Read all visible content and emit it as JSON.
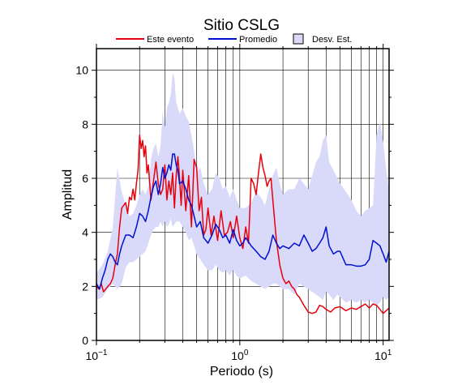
{
  "chart_data": {
    "type": "line",
    "title": "Sitio CSLG",
    "xlabel": "Periodo (s)",
    "ylabel": "Amplitud",
    "xscale": "log",
    "xlim": [
      0.1,
      11
    ],
    "ylim": [
      0,
      10.8
    ],
    "x_ticks": [
      {
        "value": 0.1,
        "base": "10",
        "exp": "−1"
      },
      {
        "value": 1,
        "base": "10",
        "exp": "0"
      },
      {
        "value": 10,
        "base": "10",
        "exp": "1"
      }
    ],
    "y_ticks": [
      0,
      2,
      4,
      6,
      8,
      10
    ],
    "grid": true,
    "legend_position": "top",
    "legend": {
      "event": "Este evento",
      "mean": "Promedio",
      "std": "Desv. Est."
    },
    "colors": {
      "event": "#e8000b",
      "mean": "#0010d0",
      "std_fill": "#d9d9fa",
      "grid": "#000000"
    },
    "series": [
      {
        "name": "Este evento",
        "x": [
          0.1,
          0.104,
          0.108,
          0.112,
          0.116,
          0.12,
          0.125,
          0.13,
          0.135,
          0.14,
          0.145,
          0.15,
          0.155,
          0.16,
          0.165,
          0.17,
          0.175,
          0.18,
          0.185,
          0.19,
          0.195,
          0.2,
          0.205,
          0.21,
          0.215,
          0.22,
          0.225,
          0.23,
          0.24,
          0.25,
          0.26,
          0.27,
          0.28,
          0.29,
          0.3,
          0.31,
          0.32,
          0.33,
          0.34,
          0.35,
          0.36,
          0.37,
          0.38,
          0.39,
          0.4,
          0.42,
          0.44,
          0.46,
          0.48,
          0.5,
          0.52,
          0.54,
          0.56,
          0.58,
          0.6,
          0.63,
          0.66,
          0.7,
          0.74,
          0.78,
          0.82,
          0.86,
          0.9,
          0.95,
          1.0,
          1.05,
          1.1,
          1.15,
          1.2,
          1.25,
          1.3,
          1.35,
          1.4,
          1.45,
          1.5,
          1.55,
          1.6,
          1.65,
          1.7,
          1.8,
          1.9,
          2.0,
          2.1,
          2.2,
          2.3,
          2.4,
          2.5,
          2.6,
          2.8,
          3.0,
          3.2,
          3.4,
          3.6,
          3.8,
          4.0,
          4.3,
          4.6,
          5.0,
          5.5,
          6.0,
          6.5,
          7.0,
          7.5,
          8.0,
          8.5,
          9.0,
          9.5,
          10.0,
          10.5,
          11.0
        ],
        "y": [
          2.0,
          1.9,
          2.1,
          1.8,
          1.9,
          2.0,
          2.1,
          2.3,
          2.8,
          3.2,
          4.2,
          4.9,
          5.0,
          5.1,
          4.7,
          5.3,
          5.2,
          5.6,
          5.2,
          5.8,
          6.3,
          7.6,
          7.1,
          7.4,
          6.8,
          7.2,
          6.2,
          6.5,
          5.2,
          5.9,
          6.6,
          5.8,
          5.4,
          5.6,
          6.5,
          5.2,
          5.9,
          5.4,
          6.2,
          4.9,
          6.1,
          6.8,
          6.0,
          5.0,
          6.3,
          4.8,
          6.1,
          4.2,
          6.7,
          6.4,
          4.8,
          5.3,
          3.9,
          4.1,
          4.9,
          3.9,
          4.6,
          3.7,
          4.8,
          3.9,
          4.0,
          4.4,
          3.8,
          4.6,
          3.8,
          3.4,
          4.2,
          3.6,
          6.0,
          5.8,
          5.4,
          6.2,
          6.9,
          6.4,
          6.1,
          5.7,
          5.9,
          6.0,
          5.2,
          3.7,
          2.8,
          2.3,
          2.1,
          2.2,
          2.0,
          1.9,
          1.7,
          1.6,
          1.3,
          1.05,
          1.0,
          1.05,
          1.3,
          1.25,
          1.15,
          1.05,
          1.2,
          1.25,
          1.1,
          1.2,
          1.15,
          1.25,
          1.35,
          1.2,
          1.35,
          1.3,
          1.15,
          1.0,
          1.1,
          1.2
        ]
      },
      {
        "name": "Promedio",
        "x": [
          0.1,
          0.105,
          0.11,
          0.115,
          0.12,
          0.125,
          0.13,
          0.135,
          0.14,
          0.145,
          0.15,
          0.16,
          0.17,
          0.18,
          0.19,
          0.2,
          0.21,
          0.22,
          0.23,
          0.24,
          0.25,
          0.26,
          0.27,
          0.28,
          0.29,
          0.3,
          0.31,
          0.32,
          0.33,
          0.34,
          0.35,
          0.36,
          0.37,
          0.38,
          0.4,
          0.42,
          0.44,
          0.46,
          0.48,
          0.5,
          0.53,
          0.56,
          0.6,
          0.64,
          0.68,
          0.72,
          0.76,
          0.8,
          0.85,
          0.9,
          0.95,
          1.0,
          1.05,
          1.1,
          1.2,
          1.3,
          1.4,
          1.5,
          1.6,
          1.7,
          1.8,
          1.9,
          2.0,
          2.2,
          2.4,
          2.6,
          2.8,
          3.0,
          3.2,
          3.4,
          3.6,
          3.8,
          4.0,
          4.2,
          4.5,
          4.8,
          5.0,
          5.5,
          6.0,
          6.5,
          7.0,
          7.5,
          8.0,
          8.5,
          9.0,
          9.5,
          10.0,
          10.5,
          11.0
        ],
        "y": [
          2.1,
          1.9,
          2.3,
          2.6,
          3.0,
          3.2,
          3.1,
          2.9,
          2.8,
          3.2,
          3.5,
          3.9,
          3.9,
          3.8,
          4.2,
          4.7,
          4.6,
          4.4,
          4.8,
          5.3,
          5.7,
          5.9,
          5.4,
          5.8,
          6.4,
          6.0,
          6.2,
          6.5,
          6.3,
          6.9,
          6.9,
          6.5,
          6.3,
          5.8,
          5.9,
          5.6,
          5.2,
          5.0,
          4.6,
          4.2,
          4.4,
          3.8,
          3.6,
          3.9,
          4.3,
          4.1,
          3.8,
          3.9,
          3.6,
          4.1,
          3.7,
          3.5,
          3.6,
          3.8,
          3.5,
          3.3,
          3.1,
          3.0,
          3.3,
          3.9,
          3.6,
          3.4,
          3.5,
          3.4,
          3.6,
          3.5,
          3.9,
          3.6,
          3.3,
          3.4,
          3.6,
          3.8,
          4.2,
          3.5,
          3.2,
          3.3,
          3.3,
          2.8,
          2.8,
          2.75,
          2.75,
          2.8,
          3.0,
          3.7,
          3.6,
          3.5,
          3.2,
          2.9,
          3.3
        ]
      }
    ],
    "std_band": {
      "x": [
        0.1,
        0.11,
        0.12,
        0.13,
        0.14,
        0.15,
        0.16,
        0.17,
        0.18,
        0.19,
        0.2,
        0.21,
        0.22,
        0.23,
        0.24,
        0.25,
        0.26,
        0.27,
        0.28,
        0.29,
        0.3,
        0.31,
        0.32,
        0.33,
        0.34,
        0.35,
        0.36,
        0.38,
        0.4,
        0.42,
        0.44,
        0.46,
        0.48,
        0.5,
        0.53,
        0.56,
        0.6,
        0.64,
        0.68,
        0.72,
        0.76,
        0.8,
        0.85,
        0.9,
        0.95,
        1.0,
        1.1,
        1.2,
        1.3,
        1.4,
        1.5,
        1.6,
        1.7,
        1.8,
        1.9,
        2.0,
        2.2,
        2.4,
        2.6,
        2.8,
        3.0,
        3.2,
        3.4,
        3.6,
        3.8,
        4.0,
        4.2,
        4.5,
        4.8,
        5.0,
        5.5,
        6.0,
        6.5,
        7.0,
        7.5,
        8.0,
        8.5,
        9.0,
        9.5,
        10.0,
        10.5,
        11.0
      ],
      "lower": [
        1.5,
        1.6,
        1.9,
        2.1,
        1.9,
        2.1,
        2.7,
        2.9,
        2.9,
        3.0,
        3.1,
        3.2,
        3.3,
        3.6,
        3.9,
        4.1,
        4.2,
        4.2,
        4.4,
        4.2,
        4.4,
        4.2,
        4.3,
        4.5,
        4.2,
        4.3,
        4.4,
        4.4,
        4.2,
        4.0,
        3.7,
        3.8,
        3.5,
        3.2,
        3.0,
        2.8,
        2.6,
        2.6,
        2.8,
        2.6,
        2.5,
        2.6,
        2.4,
        2.6,
        2.4,
        2.3,
        2.4,
        2.2,
        2.1,
        2.0,
        1.9,
        2.0,
        2.1,
        2.1,
        2.0,
        1.9,
        1.9,
        1.7,
        2.1,
        2.0,
        1.9,
        1.8,
        1.7,
        1.6,
        1.5,
        1.8,
        1.7,
        1.5,
        1.7,
        1.6,
        1.4,
        1.5,
        1.4,
        1.5,
        1.4,
        1.5,
        1.4,
        1.3,
        1.4,
        1.6,
        1.5,
        1.6
      ],
      "upper": [
        2.5,
        2.8,
        3.3,
        4.2,
        6.4,
        5.5,
        5.0,
        4.6,
        4.7,
        5.0,
        5.4,
        5.6,
        5.4,
        5.7,
        6.7,
        7.1,
        7.3,
        6.8,
        7.2,
        8.5,
        7.9,
        8.6,
        8.8,
        9.1,
        9.9,
        9.7,
        8.8,
        8.4,
        8.6,
        8.3,
        8.1,
        7.6,
        7.0,
        6.2,
        6.4,
        5.8,
        5.4,
        5.6,
        6.2,
        6.0,
        5.6,
        5.7,
        5.3,
        5.6,
        5.2,
        4.9,
        4.9,
        5.1,
        5.5,
        5.3,
        5.0,
        5.6,
        6.1,
        6.4,
        5.8,
        5.4,
        5.6,
        5.6,
        6.0,
        5.8,
        5.6,
        6.1,
        6.6,
        6.8,
        7.4,
        7.6,
        6.6,
        6.3,
        6.0,
        5.8,
        5.5,
        5.2,
        4.8,
        4.6,
        4.8,
        4.9,
        5.0,
        7.6,
        8.1,
        7.4,
        6.3,
        5.6
      ]
    }
  }
}
